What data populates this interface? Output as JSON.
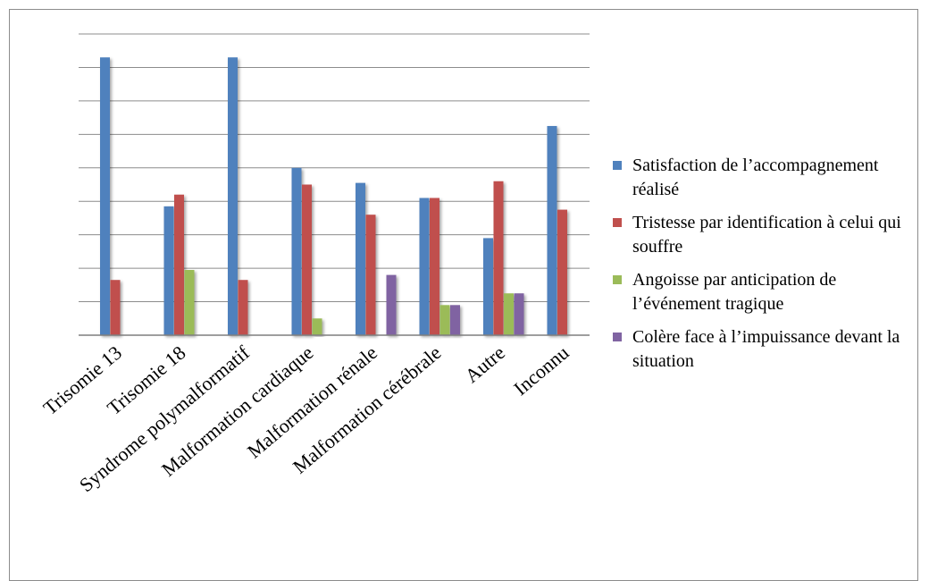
{
  "chart_data": {
    "type": "bar",
    "categories": [
      "Trisomie 13",
      "Trisomie 18",
      "Syndrome polymalformatif",
      "Malformation cardiaque",
      "Malformation rénale",
      "Malformation cérébrale",
      "Autre",
      "Inconnu"
    ],
    "series": [
      {
        "name": "Satisfaction de l’accompagnement réalisé",
        "color": "#4f81bd",
        "values": [
          8.3,
          3.85,
          8.3,
          5.0,
          4.55,
          4.1,
          2.9,
          6.25
        ]
      },
      {
        "name": "Tristesse par identification à celui qui souffre",
        "color": "#c0504d",
        "values": [
          1.65,
          4.2,
          1.65,
          4.5,
          3.6,
          4.1,
          4.6,
          3.75
        ]
      },
      {
        "name": "Angoisse par anticipation de l’événement tragique",
        "color": "#9bbb59",
        "values": [
          0,
          1.95,
          0,
          0.5,
          0,
          0.9,
          1.25,
          0
        ]
      },
      {
        "name": "Colère face à l’impuissance devant la situation",
        "color": "#8064a2",
        "values": [
          0,
          0,
          0,
          0,
          1.8,
          0.9,
          1.25,
          0
        ]
      }
    ],
    "ylim": [
      0,
      9
    ],
    "y_grid_step": 1,
    "grid": true,
    "y_tick_labels_shown": false,
    "legend_position": "right"
  }
}
